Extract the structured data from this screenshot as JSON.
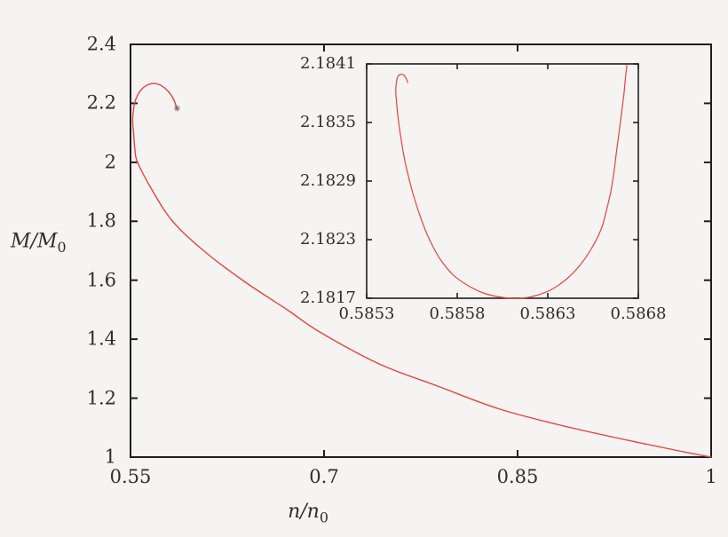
{
  "figure": {
    "background": "#f5f4f2",
    "frame_color": "#1f1f1f",
    "text_color": "#2e2e2e",
    "curve_color": "#e8433f",
    "marker_color": "#8c7370"
  },
  "chart_data": [
    {
      "id": "main",
      "type": "line",
      "title": "",
      "xlabel": {
        "main": "n/n",
        "sub": "0"
      },
      "ylabel": {
        "main": "M/M",
        "sub": "0"
      },
      "xlim": [
        0.55,
        1.0
      ],
      "ylim": [
        1.0,
        2.4
      ],
      "grid": false,
      "legend": "none",
      "x_ticks": {
        "values": [
          0.55,
          0.7,
          0.85,
          1.0
        ],
        "labels": [
          "0.55",
          "0.7",
          "0.85",
          "1"
        ]
      },
      "y_ticks": {
        "values": [
          2.4,
          2.2,
          2.0,
          1.8,
          1.6,
          1.4,
          1.2,
          1.0
        ],
        "labels": [
          "2.4",
          "2.2",
          "2",
          "1.8",
          "1.6",
          "1.4",
          "1.2",
          "1"
        ]
      },
      "series": [
        {
          "name": "mass-vs-density-curve",
          "points": [
            [
              1.0,
              1.0
            ],
            [
              0.9718,
              1.0241
            ],
            [
              0.9257,
              1.0662
            ],
            [
              0.8803,
              1.1114
            ],
            [
              0.8342,
              1.1656
            ],
            [
              0.7881,
              1.2409
            ],
            [
              0.7427,
              1.3161
            ],
            [
              0.6966,
              1.4245
            ],
            [
              0.6725,
              1.4967
            ],
            [
              0.6381,
              1.5961
            ],
            [
              0.6071,
              1.6985
            ],
            [
              0.583,
              1.7978
            ],
            [
              0.5679,
              1.8972
            ],
            [
              0.5555,
              1.9995
            ],
            [
              0.5534,
              2.0447
            ],
            [
              0.5524,
              2.0989
            ],
            [
              0.5517,
              2.135
            ],
            [
              0.5521,
              2.1711
            ],
            [
              0.5534,
              2.2043
            ],
            [
              0.5559,
              2.2314
            ],
            [
              0.5593,
              2.2509
            ],
            [
              0.5634,
              2.263
            ],
            [
              0.5676,
              2.2675
            ],
            [
              0.5717,
              2.2645
            ],
            [
              0.5758,
              2.2545
            ],
            [
              0.5796,
              2.2389
            ],
            [
              0.5827,
              2.2193
            ],
            [
              0.5848,
              2.1982
            ],
            [
              0.5856,
              2.1817
            ]
          ]
        }
      ],
      "marker_point": [
        0.5861,
        2.183
      ]
    },
    {
      "id": "inset",
      "type": "line",
      "title": "",
      "xlabel": {
        "main": "",
        "sub": ""
      },
      "ylabel": {
        "main": "",
        "sub": ""
      },
      "xlim": [
        0.5853,
        0.5868
      ],
      "ylim": [
        2.1817,
        2.1841
      ],
      "grid": false,
      "legend": "none",
      "x_ticks": {
        "values": [
          0.5853,
          0.5858,
          0.5863,
          0.5868
        ],
        "labels": [
          "0.5853",
          "0.5858",
          "0.5863",
          "0.5868"
        ]
      },
      "y_ticks": {
        "values": [
          2.1817,
          2.1823,
          2.1829,
          2.1835,
          2.1841
        ],
        "labels": [
          "2.1817",
          "2.1823",
          "2.1829",
          "2.1835",
          "2.1841"
        ]
      },
      "series": [
        {
          "name": "mass-vs-density-curve-zoom",
          "points": [
            [
              0.585527,
              2.183909
            ],
            [
              0.585513,
              2.183968
            ],
            [
              0.585493,
              2.183995
            ],
            [
              0.585473,
              2.183973
            ],
            [
              0.585464,
              2.183909
            ],
            [
              0.585461,
              2.183818
            ],
            [
              0.585466,
              2.183682
            ],
            [
              0.585476,
              2.183509
            ],
            [
              0.585491,
              2.183318
            ],
            [
              0.58551,
              2.183118
            ],
            [
              0.585535,
              2.182918
            ],
            [
              0.585564,
              2.182718
            ],
            [
              0.585603,
              2.1825
            ],
            [
              0.585647,
              2.1823
            ],
            [
              0.585706,
              2.1821
            ],
            [
              0.585779,
              2.181936
            ],
            [
              0.585862,
              2.181827
            ],
            [
              0.58595,
              2.18175
            ],
            [
              0.586048,
              2.181709
            ],
            [
              0.586145,
              2.181698
            ],
            [
              0.586243,
              2.181732
            ],
            [
              0.586331,
              2.1818
            ],
            [
              0.586409,
              2.181905
            ],
            [
              0.586477,
              2.182036
            ],
            [
              0.586541,
              2.182209
            ],
            [
              0.586595,
              2.182409
            ],
            [
              0.586624,
              2.1826
            ],
            [
              0.586649,
              2.1828
            ],
            [
              0.586666,
              2.183
            ],
            [
              0.58668,
              2.183209
            ],
            [
              0.586693,
              2.183391
            ],
            [
              0.586707,
              2.183591
            ],
            [
              0.58672,
              2.183782
            ],
            [
              0.586729,
              2.183955
            ],
            [
              0.586737,
              2.184091
            ]
          ]
        }
      ],
      "marker_point": null
    }
  ]
}
